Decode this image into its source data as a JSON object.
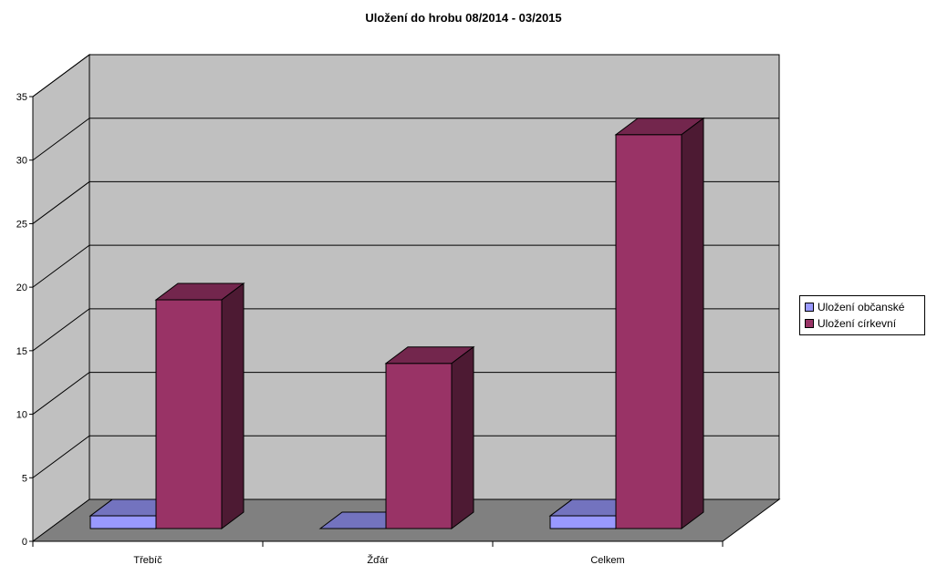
{
  "chart_data": {
    "type": "bar",
    "title": "Uložení do hrobu 08/2014 - 03/2015",
    "categories": [
      "Třebíč",
      "Žďár",
      "Celkem"
    ],
    "series": [
      {
        "name": "Uložení občanské",
        "values": [
          1,
          0,
          1
        ],
        "color": "#9999ff"
      },
      {
        "name": "Uložení církevní",
        "values": [
          18,
          13,
          31
        ],
        "color": "#993366"
      }
    ],
    "ylim": [
      0,
      35
    ],
    "yticks": [
      0,
      5,
      10,
      15,
      20,
      25,
      30,
      35
    ],
    "grid": true,
    "legend_position": "right",
    "style": "3d-clustered-column",
    "wall_color": "#c0c0c0",
    "floor_color": "#808080"
  }
}
